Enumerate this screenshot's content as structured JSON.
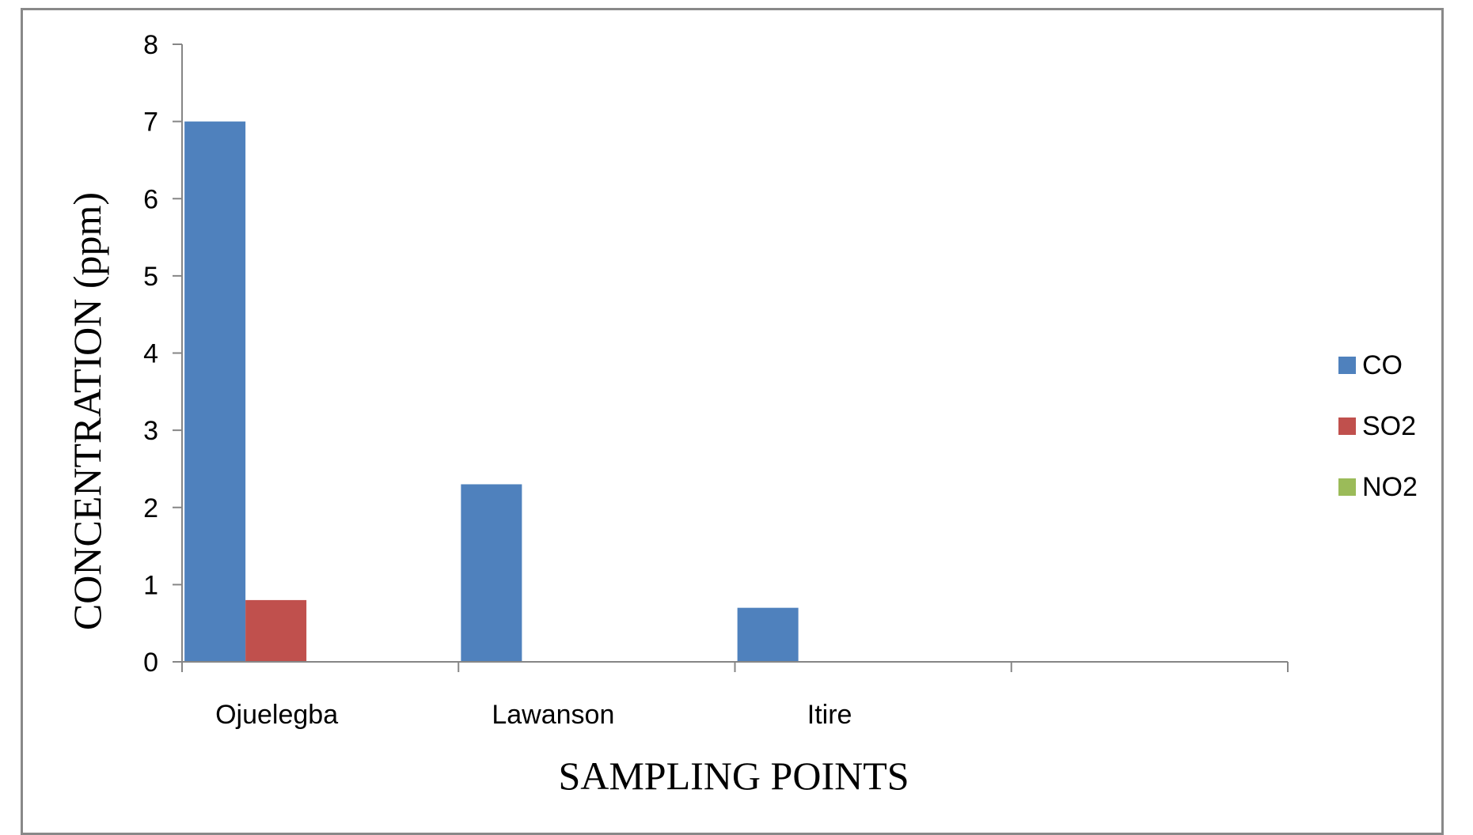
{
  "chart_data": {
    "type": "bar",
    "categories": [
      "Ojuelegba",
      "Lawanson",
      "Itire",
      ""
    ],
    "series": [
      {
        "name": "CO",
        "values": [
          7,
          2.3,
          0.7,
          0
        ],
        "color": "#4F81BD"
      },
      {
        "name": "SO2",
        "values": [
          0.8,
          0,
          0,
          0
        ],
        "color": "#C0504D"
      },
      {
        "name": "NO2",
        "values": [
          0,
          0,
          0,
          0
        ],
        "color": "#9BBB59"
      }
    ],
    "xlabel": "SAMPLING POINTS",
    "ylabel": "CONCENTRATION (ppm)",
    "ylim": [
      0,
      8
    ],
    "yticks": [
      "0",
      "1",
      "2",
      "3",
      "4",
      "5",
      "6",
      "7",
      "8"
    ],
    "grid": false,
    "legend_position": "right"
  }
}
